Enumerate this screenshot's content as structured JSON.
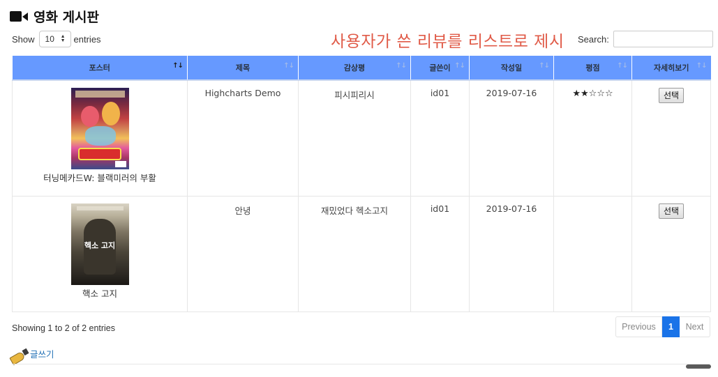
{
  "header": {
    "title": "영화 게시판",
    "icon": "video-camera-icon"
  },
  "length": {
    "prefix": "Show",
    "value": "10",
    "suffix": "entries"
  },
  "annotation": "사용자가 쓴 리뷰를 리스트로 제시",
  "search": {
    "label": "Search:",
    "value": ""
  },
  "table": {
    "header_color": "#6699ff",
    "columns": [
      "포스터",
      "제목",
      "감상평",
      "글쓴이",
      "작성일",
      "평점",
      "자세히보기"
    ],
    "rows": [
      {
        "poster_title": "터닝메카드W: 블랙미러의 부활",
        "title": "Highcharts Demo",
        "review": "피시피리시",
        "author": "id01",
        "date": "2019-07-16",
        "rating": "★★☆☆☆",
        "action": "선택"
      },
      {
        "poster_title": "핵소 고지",
        "title": "안녕",
        "review": "재밌었다 헥소고지",
        "author": "id01",
        "date": "2019-07-16",
        "rating": "",
        "action": "선택"
      }
    ]
  },
  "info": "Showing 1 to 2 of 2 entries",
  "pagination": {
    "previous": "Previous",
    "current": "1",
    "next": "Next",
    "accent": "#1a73e8"
  },
  "write": {
    "label": "글쓰기",
    "icon": "pen-icon"
  },
  "poster2_text": "헥소 고지"
}
